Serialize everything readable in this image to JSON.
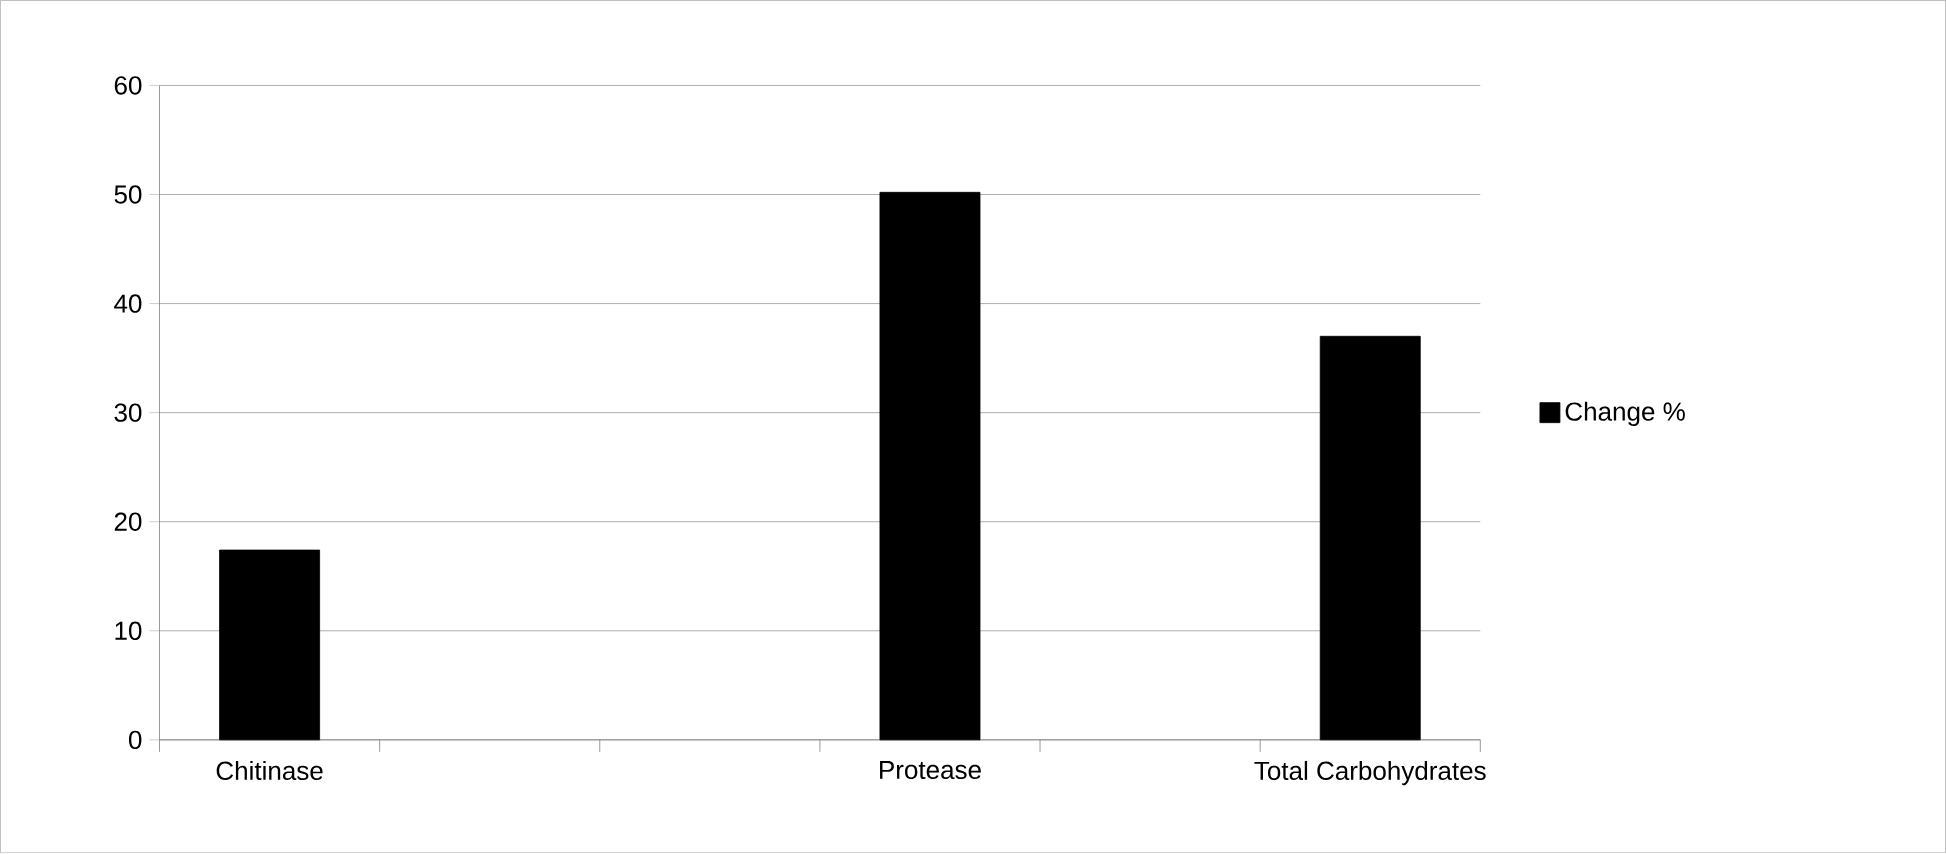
{
  "chart_data": {
    "type": "bar",
    "categories": [
      "Chitinase",
      null,
      null,
      "Protease",
      null,
      "Total Carbohydrates"
    ],
    "series": [
      {
        "name": "Change %",
        "color": "#000000",
        "values": [
          17.4,
          null,
          null,
          50.2,
          null,
          37
        ]
      }
    ],
    "ylim": [
      0,
      60
    ],
    "yticks": [
      0,
      10,
      20,
      30,
      40,
      50,
      60
    ],
    "grid": "y",
    "legend": "right"
  }
}
